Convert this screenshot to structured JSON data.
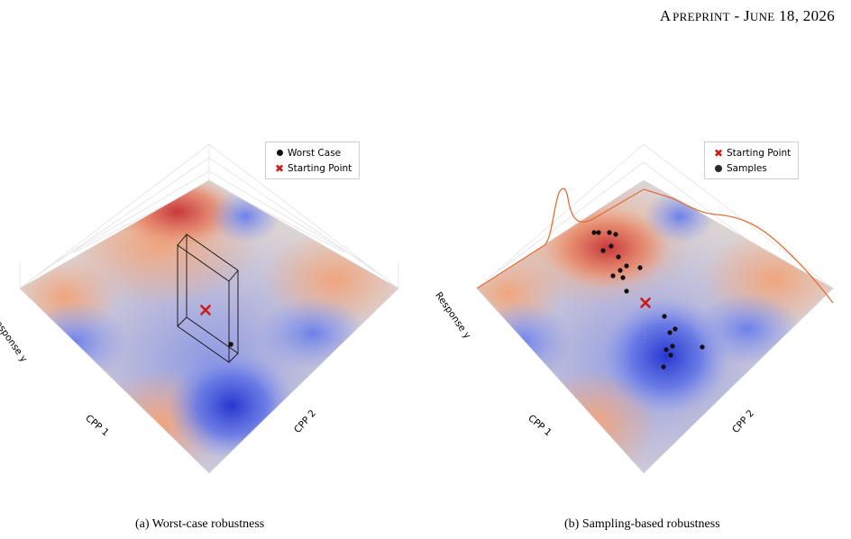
{
  "header": {
    "a": "A",
    "preprint": "PREPRINT",
    "sep": " - ",
    "j": "J",
    "une": "UNE",
    "date": " 18, 2026"
  },
  "figures": [
    {
      "id": "a",
      "legend": [
        {
          "symbol": "black-dot",
          "label": "Worst Case"
        },
        {
          "symbol": "red-x",
          "label": "Starting Point"
        }
      ],
      "axes": {
        "z": "Response y",
        "x": "CPP 1",
        "y": "CPP 2"
      },
      "caption": "(a) Worst-case robustness"
    },
    {
      "id": "b",
      "legend": [
        {
          "symbol": "red-x",
          "label": "Starting Point"
        },
        {
          "symbol": "black-dot",
          "label": "Samples"
        }
      ],
      "axes": {
        "z": "Response y",
        "x": "CPP 1",
        "y": "CPP 2"
      },
      "caption": "(b) Sampling-based robustness",
      "sample_count": 20
    }
  ],
  "colors": {
    "high": "#c7373a",
    "mid": "#d9cfcf",
    "low": "#3347d6",
    "marginal": "#e0703a",
    "marker": "#d01818"
  }
}
